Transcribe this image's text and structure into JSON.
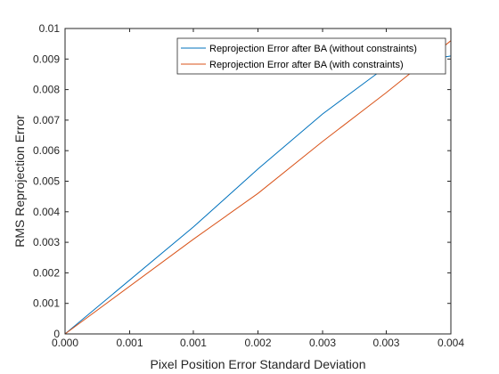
{
  "chart_data": {
    "type": "line",
    "title": "",
    "xlabel": "Pixel Position Error Standard Deviation",
    "ylabel": "RMS Reprojection Error",
    "xlim": [
      0,
      0.004
    ],
    "ylim": [
      0,
      0.01
    ],
    "x_ticks": [
      "0.000",
      "0.001",
      "0.001",
      "0.002",
      "0.003",
      "0.003",
      "0.004"
    ],
    "x_tick_values": [
      0,
      0.00067,
      0.00133,
      0.002,
      0.00267,
      0.00333,
      0.004
    ],
    "y_ticks": [
      "0",
      "0.001",
      "0.002",
      "0.003",
      "0.004",
      "0.005",
      "0.006",
      "0.007",
      "0.008",
      "0.009",
      "0.01"
    ],
    "y_tick_values": [
      0,
      0.001,
      0.002,
      0.003,
      0.004,
      0.005,
      0.006,
      0.007,
      0.008,
      0.009,
      0.01
    ],
    "grid": false,
    "legend_position": "top-right",
    "series": [
      {
        "name": "Reprojection Error after BA (without constraints)",
        "color": "#0072BD",
        "x": [
          0,
          0.00133,
          0.002,
          0.00267,
          0.00333,
          0.00385,
          0.0039,
          0.004
        ],
        "y": [
          0,
          0.0035,
          0.0054,
          0.0072,
          0.00875,
          0.0092,
          0.00905,
          0.0091
        ]
      },
      {
        "name": "Reprojection Error after BA (with constraints)",
        "color": "#D95319",
        "x": [
          0,
          0.00133,
          0.002,
          0.00267,
          0.00333,
          0.004
        ],
        "y": [
          0,
          0.0031,
          0.0046,
          0.0063,
          0.0079,
          0.0096
        ]
      }
    ]
  }
}
